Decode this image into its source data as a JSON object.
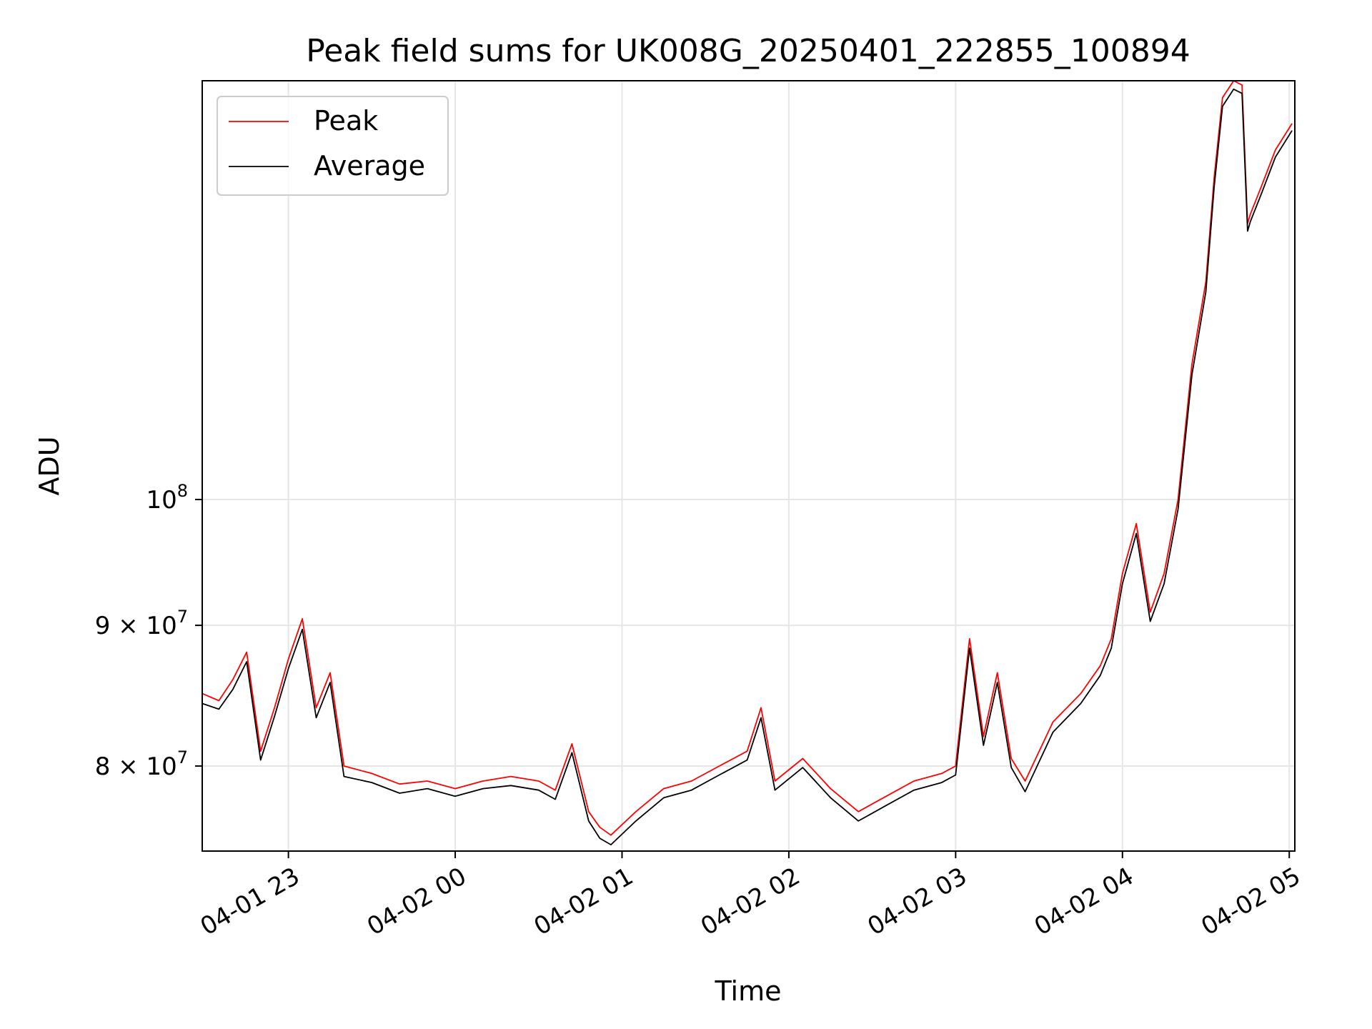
{
  "chart_data": {
    "type": "line",
    "title": "Peak field sums for UK008G_20250401_222855_100894",
    "xlabel": "Time",
    "ylabel": "ADU",
    "yscale": "log",
    "xlim": [
      "2025-04-01 22:29",
      "2025-04-02 05:02"
    ],
    "ylim": [
      74500000,
      142000000
    ],
    "grid": true,
    "legend_placement": "upper-left",
    "x_ticks": [
      {
        "value": "2025-04-01 23:00",
        "label": "04-01 23"
      },
      {
        "value": "2025-04-02 00:00",
        "label": "04-02 00"
      },
      {
        "value": "2025-04-02 01:00",
        "label": "04-02 01"
      },
      {
        "value": "2025-04-02 02:00",
        "label": "04-02 02"
      },
      {
        "value": "2025-04-02 03:00",
        "label": "04-02 03"
      },
      {
        "value": "2025-04-02 04:00",
        "label": "04-02 04"
      },
      {
        "value": "2025-04-02 05:00",
        "label": "04-02 05"
      }
    ],
    "y_ticks": [
      {
        "value": 80000000,
        "base": "8 × 10",
        "exp": "7"
      },
      {
        "value": 90000000,
        "base": "9 × 10",
        "exp": "7"
      },
      {
        "value": 100000000,
        "base": "10",
        "exp": "8"
      }
    ],
    "x": [
      "2025-04-01 22:29",
      "2025-04-01 22:35",
      "2025-04-01 22:40",
      "2025-04-01 22:45",
      "2025-04-01 22:50",
      "2025-04-01 22:55",
      "2025-04-01 23:00",
      "2025-04-01 23:05",
      "2025-04-01 23:10",
      "2025-04-01 23:15",
      "2025-04-01 23:20",
      "2025-04-01 23:30",
      "2025-04-01 23:40",
      "2025-04-01 23:50",
      "2025-04-02 00:00",
      "2025-04-02 00:10",
      "2025-04-02 00:20",
      "2025-04-02 00:30",
      "2025-04-02 00:36",
      "2025-04-02 00:42",
      "2025-04-02 00:48",
      "2025-04-02 00:52",
      "2025-04-02 00:56",
      "2025-04-02 01:05",
      "2025-04-02 01:15",
      "2025-04-02 01:25",
      "2025-04-02 01:35",
      "2025-04-02 01:45",
      "2025-04-02 01:50",
      "2025-04-02 01:55",
      "2025-04-02 02:05",
      "2025-04-02 02:15",
      "2025-04-02 02:25",
      "2025-04-02 02:35",
      "2025-04-02 02:45",
      "2025-04-02 02:55",
      "2025-04-02 03:00",
      "2025-04-02 03:05",
      "2025-04-02 03:10",
      "2025-04-02 03:15",
      "2025-04-02 03:20",
      "2025-04-02 03:25",
      "2025-04-02 03:35",
      "2025-04-02 03:45",
      "2025-04-02 03:52",
      "2025-04-02 03:56",
      "2025-04-02 04:00",
      "2025-04-02 04:05",
      "2025-04-02 04:10",
      "2025-04-02 04:15",
      "2025-04-02 04:20",
      "2025-04-02 04:25",
      "2025-04-02 04:30",
      "2025-04-02 04:33",
      "2025-04-02 04:36",
      "2025-04-02 04:40",
      "2025-04-02 04:43",
      "2025-04-02 04:45",
      "2025-04-02 04:46",
      "2025-04-02 04:50",
      "2025-04-02 04:55",
      "2025-04-02 05:01"
    ],
    "series": [
      {
        "name": "Peak",
        "color": "#ff0000",
        "values": [
          85000000,
          84500000,
          86000000,
          88000000,
          81000000,
          84000000,
          87500000,
          90500000,
          84000000,
          86500000,
          80000000,
          79500000,
          78800000,
          79000000,
          78500000,
          79000000,
          79300000,
          79000000,
          78400000,
          81500000,
          77000000,
          76000000,
          75500000,
          77000000,
          78500000,
          79000000,
          80000000,
          81000000,
          84000000,
          79000000,
          80500000,
          78500000,
          77000000,
          78000000,
          79000000,
          79500000,
          80000000,
          89000000,
          82000000,
          86500000,
          80500000,
          79000000,
          83000000,
          85000000,
          87000000,
          89000000,
          94000000,
          98000000,
          91000000,
          94000000,
          100000000,
          112000000,
          120000000,
          131000000,
          140000000,
          142000000,
          141500000,
          126000000,
          127000000,
          130000000,
          134000000,
          137000000
        ]
      },
      {
        "name": "Average",
        "color": "#000000",
        "values": [
          84300000,
          83900000,
          85300000,
          87300000,
          80400000,
          83400000,
          86800000,
          89700000,
          83300000,
          85800000,
          79300000,
          78900000,
          78200000,
          78500000,
          78000000,
          78500000,
          78700000,
          78400000,
          77800000,
          80900000,
          76400000,
          75300000,
          74900000,
          76400000,
          77900000,
          78400000,
          79400000,
          80400000,
          83300000,
          78400000,
          79900000,
          77900000,
          76400000,
          77400000,
          78400000,
          78900000,
          79400000,
          88300000,
          81400000,
          85800000,
          79900000,
          78300000,
          82300000,
          84300000,
          86300000,
          88300000,
          93200000,
          97200000,
          90300000,
          93200000,
          99200000,
          111000000,
          119000000,
          130000000,
          139000000,
          141000000,
          140500000,
          125200000,
          126200000,
          129200000,
          133200000,
          136200000
        ]
      }
    ]
  }
}
